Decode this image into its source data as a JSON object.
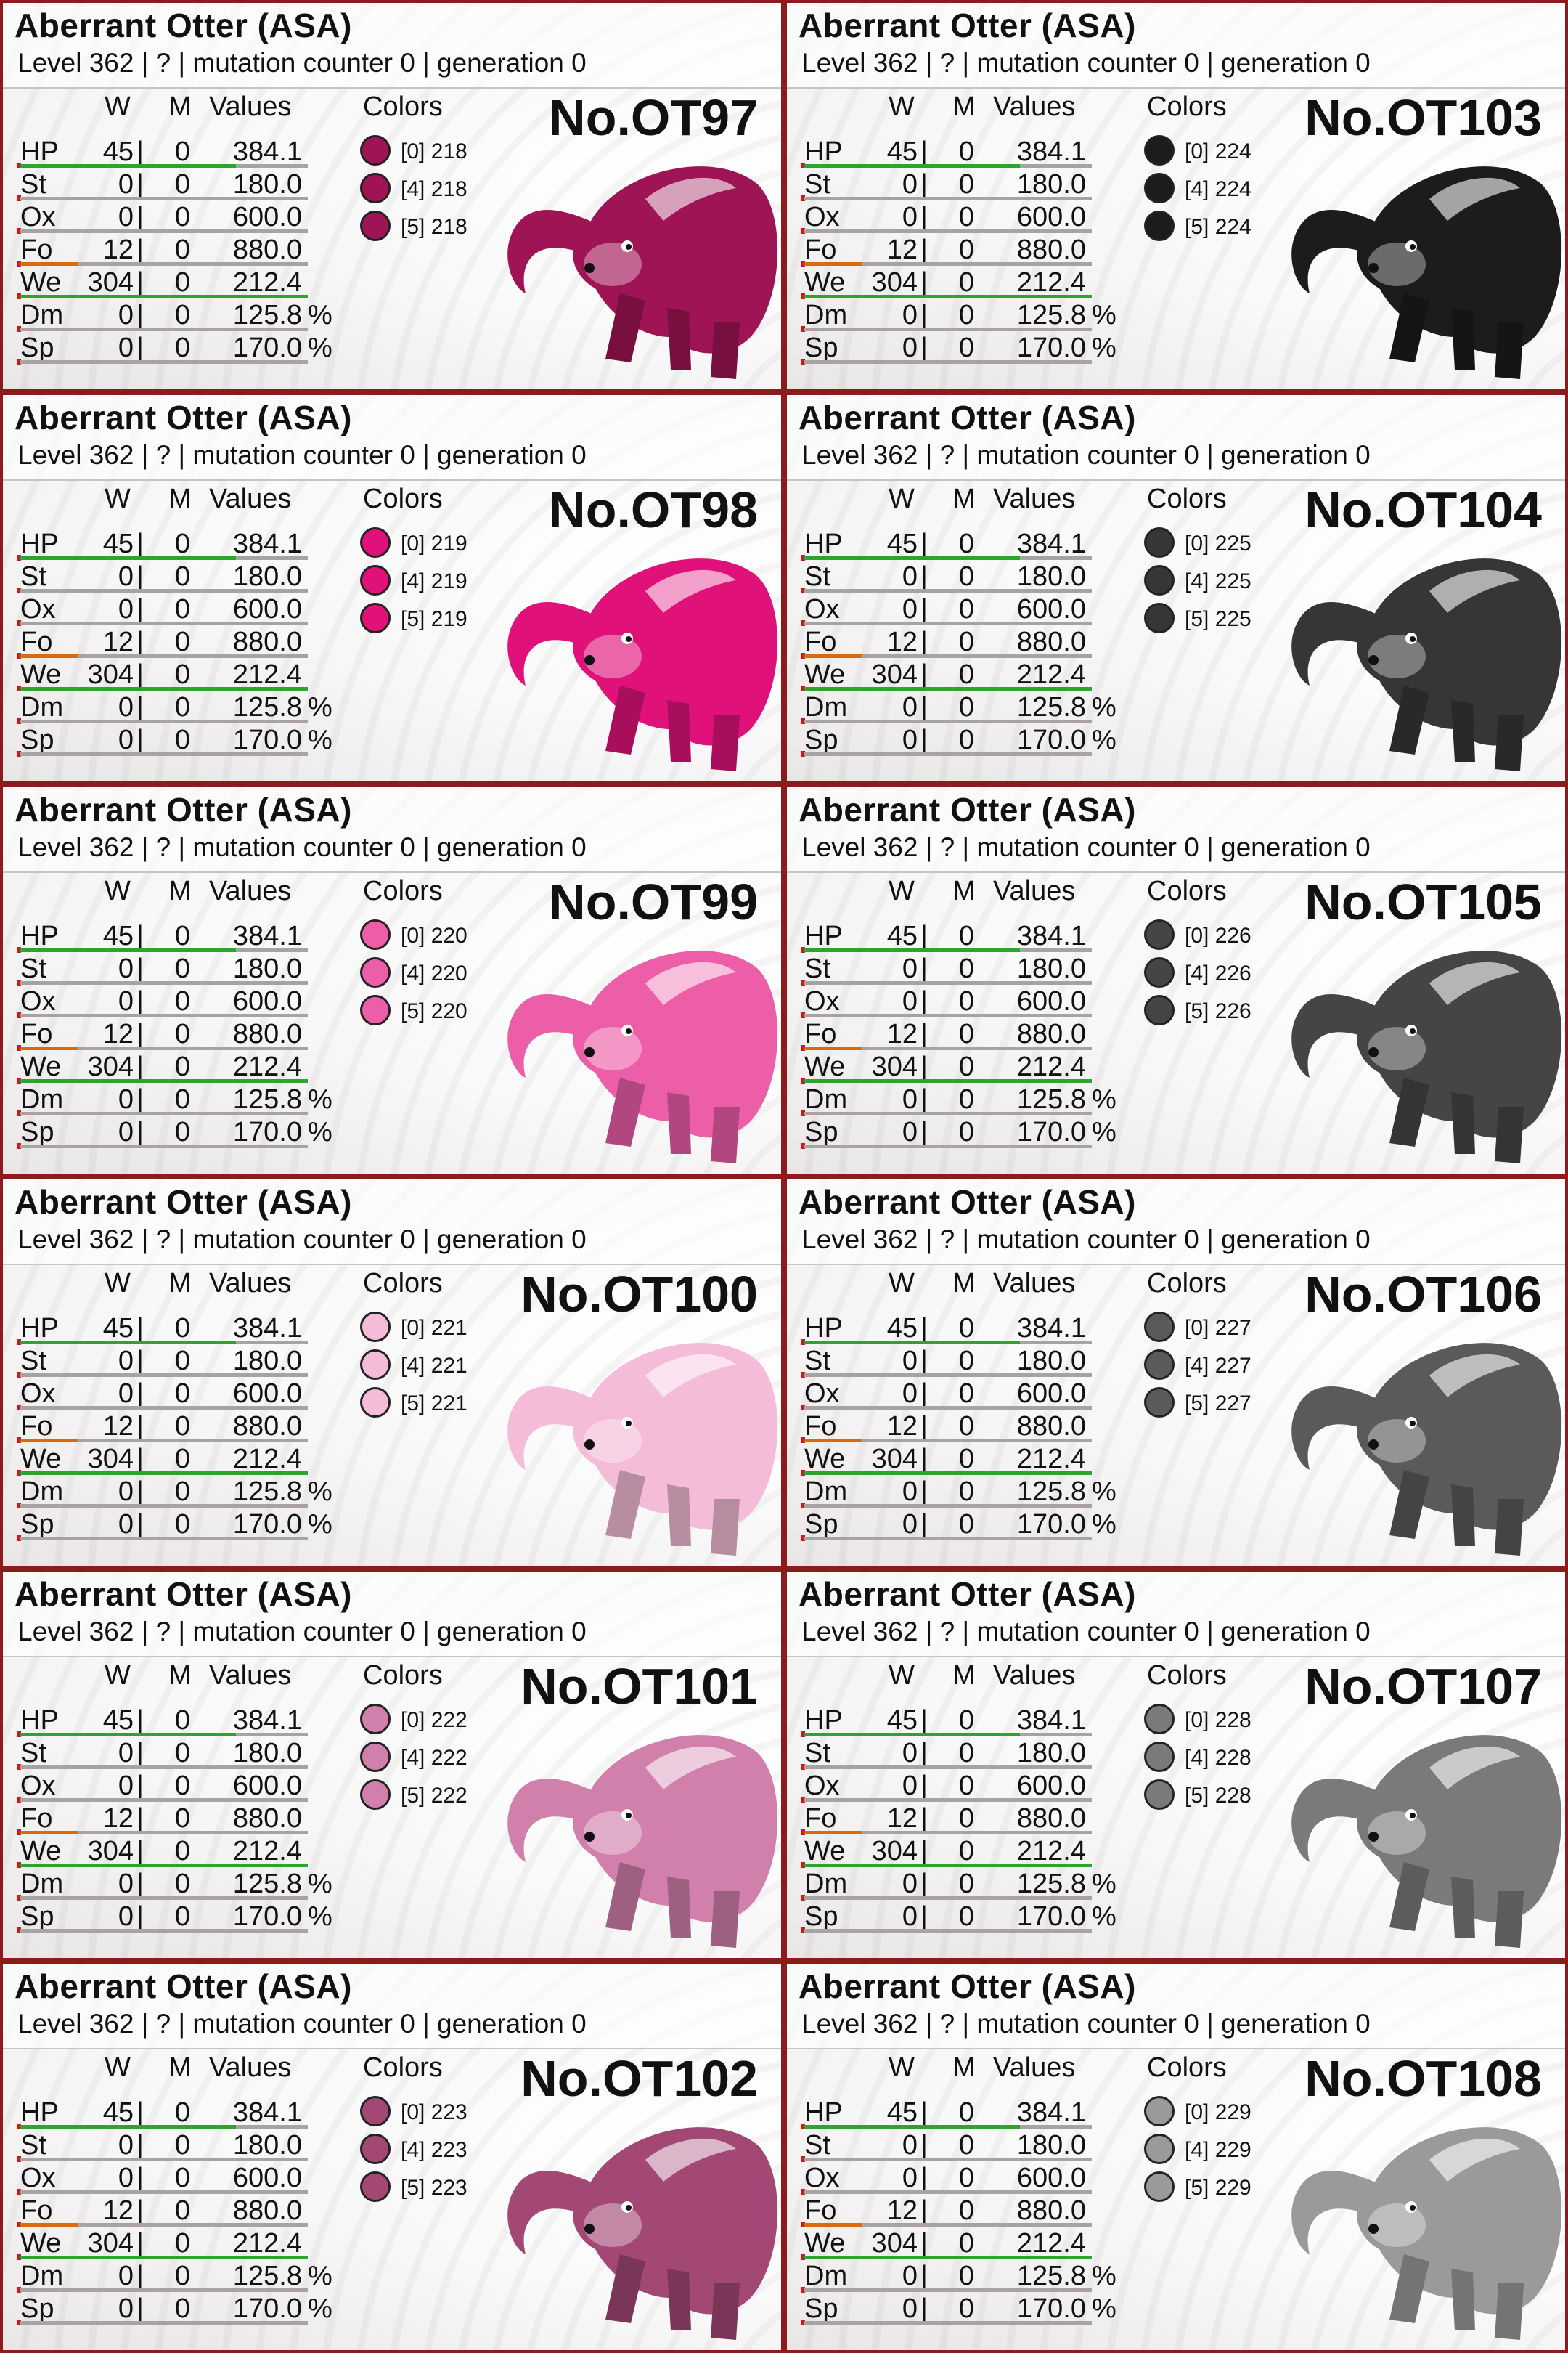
{
  "common": {
    "title": "Aberrant Otter (ASA)",
    "info": "Level 362 | ? | mutation counter 0 | generation 0",
    "headers": {
      "w": "W",
      "m": "M",
      "values": "Values",
      "colors": "Colors"
    },
    "pct": "%",
    "sep": "|"
  },
  "cards": [
    {
      "id": "No.OT97",
      "colors": [
        {
          "label": "[0] 218",
          "hex": "#9e1454"
        },
        {
          "label": "[4] 218",
          "hex": "#9e1454"
        },
        {
          "label": "[5] 218",
          "hex": "#9e1454"
        }
      ]
    },
    {
      "id": "No.OT103",
      "colors": [
        {
          "label": "[0] 224",
          "hex": "#1c1c1c"
        },
        {
          "label": "[4] 224",
          "hex": "#1c1c1c"
        },
        {
          "label": "[5] 224",
          "hex": "#1c1c1c"
        }
      ]
    },
    {
      "id": "No.OT98",
      "colors": [
        {
          "label": "[0] 219",
          "hex": "#e0127a"
        },
        {
          "label": "[4] 219",
          "hex": "#e0127a"
        },
        {
          "label": "[5] 219",
          "hex": "#e0127a"
        }
      ]
    },
    {
      "id": "No.OT104",
      "colors": [
        {
          "label": "[0] 225",
          "hex": "#363636"
        },
        {
          "label": "[4] 225",
          "hex": "#363636"
        },
        {
          "label": "[5] 225",
          "hex": "#363636"
        }
      ]
    },
    {
      "id": "No.OT99",
      "colors": [
        {
          "label": "[0] 220",
          "hex": "#ec5fa8"
        },
        {
          "label": "[4] 220",
          "hex": "#ec5fa8"
        },
        {
          "label": "[5] 220",
          "hex": "#ec5fa8"
        }
      ]
    },
    {
      "id": "No.OT105",
      "colors": [
        {
          "label": "[0] 226",
          "hex": "#454545"
        },
        {
          "label": "[4] 226",
          "hex": "#454545"
        },
        {
          "label": "[5] 226",
          "hex": "#454545"
        }
      ]
    },
    {
      "id": "No.OT100",
      "colors": [
        {
          "label": "[0] 221",
          "hex": "#f4bcd8"
        },
        {
          "label": "[4] 221",
          "hex": "#f4bcd8"
        },
        {
          "label": "[5] 221",
          "hex": "#f4bcd8"
        }
      ]
    },
    {
      "id": "No.OT106",
      "colors": [
        {
          "label": "[0] 227",
          "hex": "#5a5a5a"
        },
        {
          "label": "[4] 227",
          "hex": "#5a5a5a"
        },
        {
          "label": "[5] 227",
          "hex": "#5a5a5a"
        }
      ]
    },
    {
      "id": "No.OT101",
      "colors": [
        {
          "label": "[0] 222",
          "hex": "#d180ac"
        },
        {
          "label": "[4] 222",
          "hex": "#d180ac"
        },
        {
          "label": "[5] 222",
          "hex": "#d180ac"
        }
      ]
    },
    {
      "id": "No.OT107",
      "colors": [
        {
          "label": "[0] 228",
          "hex": "#7a7a7a"
        },
        {
          "label": "[4] 228",
          "hex": "#7a7a7a"
        },
        {
          "label": "[5] 228",
          "hex": "#7a7a7a"
        }
      ]
    },
    {
      "id": "No.OT102",
      "colors": [
        {
          "label": "[0] 223",
          "hex": "#a34875"
        },
        {
          "label": "[4] 223",
          "hex": "#a34875"
        },
        {
          "label": "[5] 223",
          "hex": "#a34875"
        }
      ]
    },
    {
      "id": "No.OT108",
      "colors": [
        {
          "label": "[0] 229",
          "hex": "#9a9a9a"
        },
        {
          "label": "[4] 229",
          "hex": "#9a9a9a"
        },
        {
          "label": "[5] 229",
          "hex": "#9a9a9a"
        }
      ]
    }
  ],
  "stats": [
    {
      "name": "HP",
      "w": "45",
      "m": "0",
      "value": "384.1",
      "pct": false,
      "bar": 0.75,
      "bar_color": "#2ea42e"
    },
    {
      "name": "St",
      "w": "0",
      "m": "0",
      "value": "180.0",
      "pct": false,
      "bar": 0.0,
      "bar_color": "#2ea42e"
    },
    {
      "name": "Ox",
      "w": "0",
      "m": "0",
      "value": "600.0",
      "pct": false,
      "bar": 0.0,
      "bar_color": "#2ea42e"
    },
    {
      "name": "Fo",
      "w": "12",
      "m": "0",
      "value": "880.0",
      "pct": false,
      "bar": 0.2,
      "bar_color": "#d86a10"
    },
    {
      "name": "We",
      "w": "304",
      "m": "0",
      "value": "212.4",
      "pct": false,
      "bar": 1.0,
      "bar_color": "#2ea42e"
    },
    {
      "name": "Dm",
      "w": "0",
      "m": "0",
      "value": "125.8",
      "pct": true,
      "bar": 0.0,
      "bar_color": "#2ea42e"
    },
    {
      "name": "Sp",
      "w": "0",
      "m": "0",
      "value": "170.0",
      "pct": true,
      "bar": 0.0,
      "bar_color": "#2ea42e"
    }
  ]
}
